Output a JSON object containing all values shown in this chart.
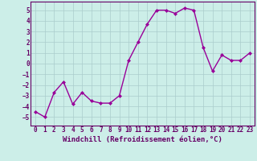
{
  "x": [
    0,
    1,
    2,
    3,
    4,
    5,
    6,
    7,
    8,
    9,
    10,
    11,
    12,
    13,
    14,
    15,
    16,
    17,
    18,
    19,
    20,
    21,
    22,
    23
  ],
  "y": [
    -4.5,
    -5.0,
    -2.7,
    -1.7,
    -3.8,
    -2.7,
    -3.5,
    -3.7,
    -3.7,
    -3.0,
    0.3,
    2.0,
    3.7,
    5.0,
    5.0,
    4.7,
    5.2,
    5.0,
    1.5,
    -0.7,
    0.8,
    0.3,
    0.3,
    1.0
  ],
  "line_color": "#990099",
  "marker": "D",
  "marker_size": 2.0,
  "linewidth": 1.0,
  "bg_color": "#cceee8",
  "grid_color": "#aacccc",
  "xlabel": "Windchill (Refroidissement éolien,°C)",
  "xlabel_fontsize": 6.5,
  "xlim": [
    -0.5,
    23.5
  ],
  "ylim": [
    -5.8,
    5.8
  ],
  "yticks": [
    -5,
    -4,
    -3,
    -2,
    -1,
    0,
    1,
    2,
    3,
    4,
    5
  ],
  "xticks": [
    0,
    1,
    2,
    3,
    4,
    5,
    6,
    7,
    8,
    9,
    10,
    11,
    12,
    13,
    14,
    15,
    16,
    17,
    18,
    19,
    20,
    21,
    22,
    23
  ],
  "tick_fontsize": 5.5,
  "tick_color": "#660066",
  "xlabel_color": "#660066",
  "spine_color": "#660066"
}
